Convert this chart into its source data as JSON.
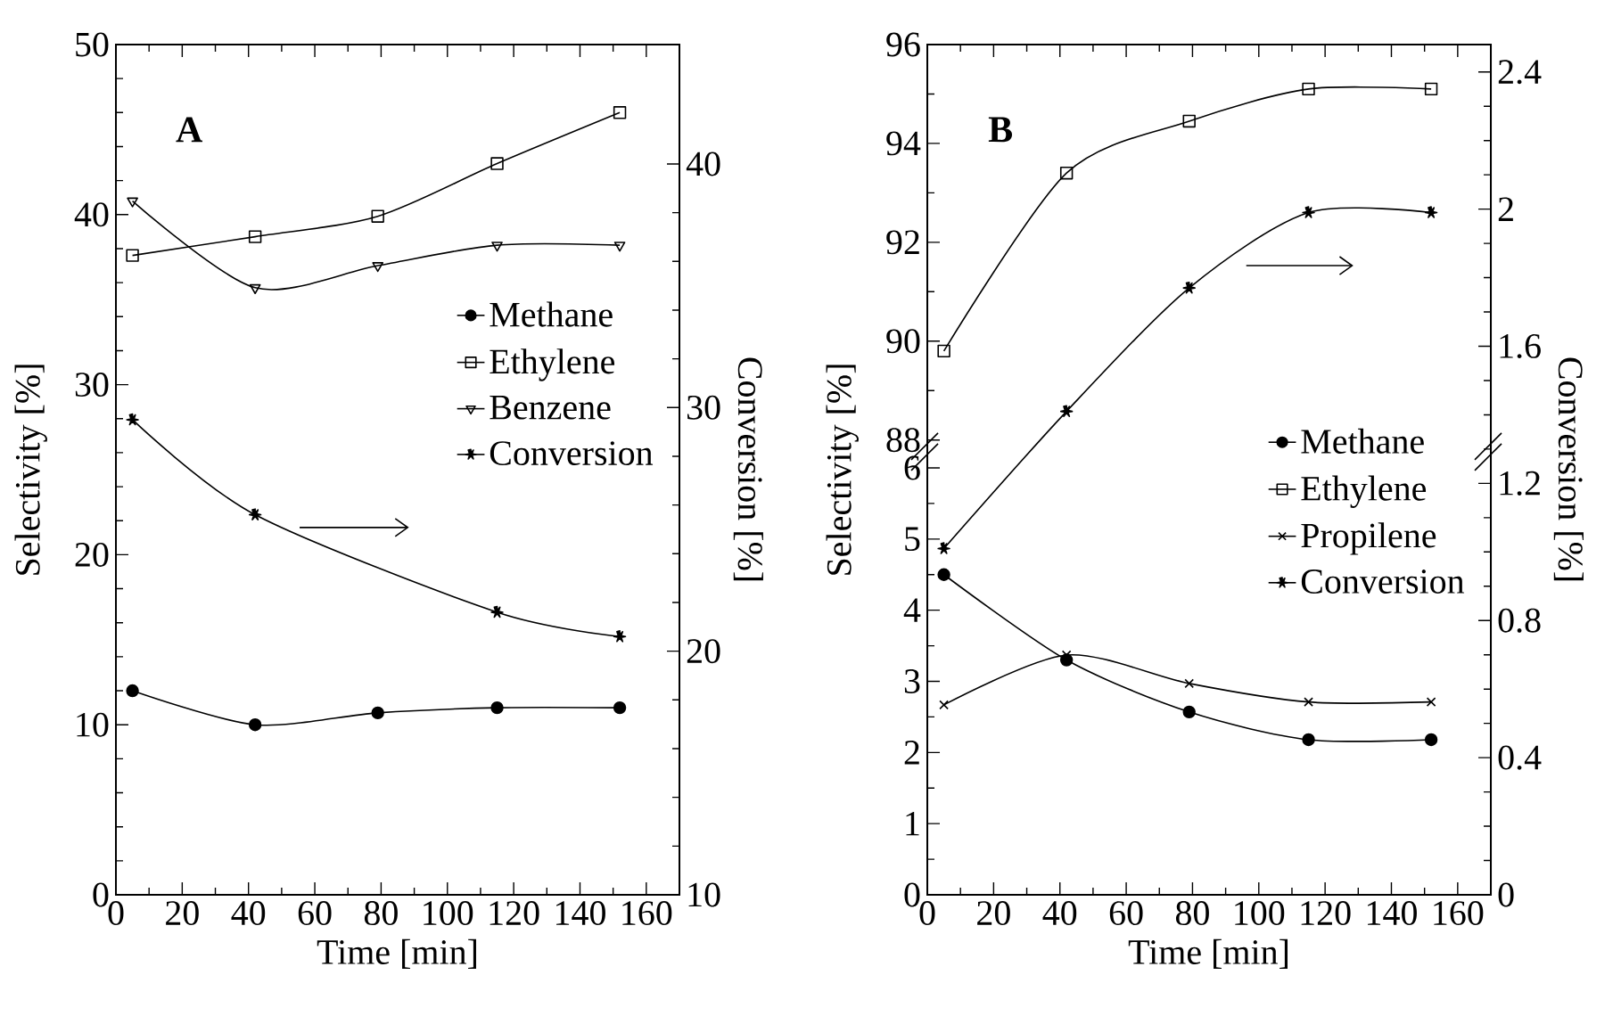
{
  "chart_data": [
    {
      "type": "line",
      "title": "A",
      "xlabel": "Time [min]",
      "ylabel": "Selectivity [%]",
      "y2label": "Conversion [%]",
      "x": [
        5,
        42,
        79,
        115,
        152
      ],
      "xlim": [
        0,
        170
      ],
      "xticks": [
        0,
        20,
        40,
        60,
        80,
        100,
        120,
        140,
        160
      ],
      "ylim": [
        0,
        50
      ],
      "yticks": [
        0,
        10,
        20,
        30,
        40,
        50
      ],
      "y2lim": [
        10,
        44.9
      ],
      "y2ticks": [
        10,
        20,
        30,
        40
      ],
      "legend": "right",
      "series": [
        {
          "name": "Methane",
          "color": "#000000",
          "marker": "circle",
          "values": [
            12.0,
            10.0,
            10.7,
            11.0,
            11.0
          ]
        },
        {
          "name": "Ethylene",
          "color": "#000000",
          "marker": "square",
          "values": [
            37.6,
            38.7,
            39.9,
            43.0,
            46.0
          ]
        },
        {
          "name": "Benzene",
          "color": "#000000",
          "marker": "triangle",
          "values": [
            40.8,
            35.7,
            37.0,
            38.2,
            38.2
          ]
        },
        {
          "name": "Conversion",
          "color": "#000000",
          "marker": "star",
          "axis": "y2",
          "x": [
            5,
            42,
            115,
            152
          ],
          "values": [
            29.5,
            25.6,
            21.6,
            20.6
          ]
        }
      ]
    },
    {
      "type": "line",
      "title": "B",
      "xlabel": "Time [min]",
      "ylabel": "Selectivity [%]",
      "y2label": "Conversion [%]",
      "x": [
        5,
        42,
        79,
        115,
        152
      ],
      "xlim": [
        0,
        170
      ],
      "xticks": [
        0,
        20,
        40,
        60,
        80,
        100,
        120,
        140,
        160
      ],
      "ylim": [
        0,
        11.95
      ],
      "yticks": [
        0,
        1,
        2,
        3,
        4,
        5,
        6
      ],
      "y3lim": [
        78.8,
        96
      ],
      "y3ticks": [
        88,
        90,
        92,
        94,
        96
      ],
      "y2lim": [
        0,
        2.48
      ],
      "y2ticks": [
        0,
        0.4,
        0.8,
        1.2,
        1.6,
        2,
        2.4
      ],
      "legend": "right",
      "series": [
        {
          "name": "Methane",
          "color": "#000000",
          "marker": "circle",
          "values": [
            4.5,
            3.3,
            2.57,
            2.18,
            2.18
          ]
        },
        {
          "name": "Ethylene",
          "color": "#000000",
          "marker": "square",
          "axis": "y3",
          "values": [
            89.8,
            93.4,
            94.45,
            95.1,
            95.1
          ]
        },
        {
          "name": "Propilene",
          "color": "#000000",
          "marker": "cross",
          "values": [
            2.67,
            3.37,
            2.97,
            2.71,
            2.71
          ]
        },
        {
          "name": "Conversion",
          "color": "#000000",
          "marker": "star",
          "axis": "y2",
          "values": [
            1.01,
            1.41,
            1.77,
            1.99,
            1.99
          ]
        }
      ]
    }
  ]
}
